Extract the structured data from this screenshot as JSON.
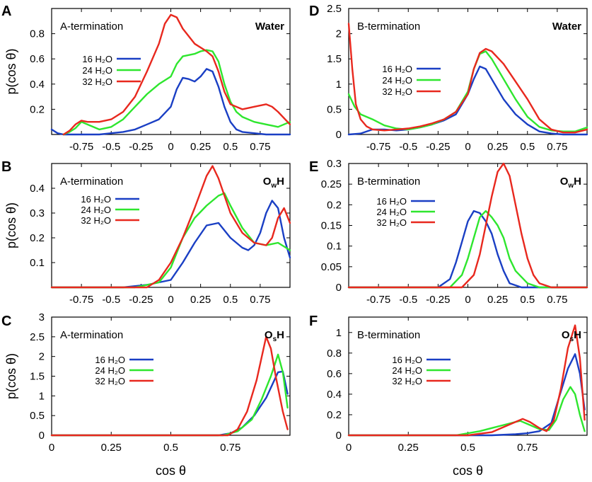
{
  "figure": {
    "panel_ylabel": "p(cos θ)",
    "bottom_xlabel": "cos θ",
    "colors": {
      "16 H2O": "#1a3fc4",
      "24 H2O": "#2ee62e",
      "32 H2O": "#e8281e"
    }
  },
  "chart_data": [
    {
      "id": "A",
      "type": "line",
      "letter": "A",
      "label": "A-termination",
      "title": "Water",
      "xlim": [
        -1,
        1
      ],
      "ylim": [
        0,
        1.0
      ],
      "xticks": [
        -0.75,
        -0.5,
        -0.25,
        0,
        0.25,
        0.5,
        0.75
      ],
      "xtick_labels": [
        "-0.75",
        "-0.5",
        "-0.25",
        "0",
        "0.25",
        "0.5",
        "0.75"
      ],
      "yticks": [
        0.2,
        0.4,
        0.6,
        0.8
      ],
      "ytick_labels": [
        "0.2",
        "0.4",
        "0.6",
        "0.8"
      ],
      "ylabel": "p(cos θ)",
      "xlabel": "",
      "legend": [
        "16 H₂O",
        "24 H₂O",
        "32 H₂O"
      ],
      "series": [
        {
          "name": "16 H₂O",
          "color": "#1a3fc4",
          "x": [
            -1,
            -0.95,
            -0.9,
            -0.8,
            -0.7,
            -0.6,
            -0.5,
            -0.4,
            -0.3,
            -0.2,
            -0.1,
            0,
            0.05,
            0.1,
            0.15,
            0.2,
            0.25,
            0.3,
            0.35,
            0.4,
            0.45,
            0.5,
            0.55,
            0.6,
            0.7,
            0.8,
            0.9,
            1
          ],
          "y": [
            0.04,
            0.01,
            0.0,
            0.0,
            0.0,
            0.0,
            0.01,
            0.02,
            0.04,
            0.08,
            0.12,
            0.22,
            0.36,
            0.45,
            0.44,
            0.42,
            0.46,
            0.52,
            0.5,
            0.38,
            0.22,
            0.1,
            0.04,
            0.02,
            0.01,
            0.0,
            0.0,
            0.0
          ]
        },
        {
          "name": "24 H₂O",
          "color": "#2ee62e",
          "x": [
            -0.9,
            -0.85,
            -0.8,
            -0.75,
            -0.7,
            -0.6,
            -0.5,
            -0.4,
            -0.3,
            -0.2,
            -0.1,
            0,
            0.05,
            0.1,
            0.2,
            0.25,
            0.3,
            0.35,
            0.4,
            0.45,
            0.5,
            0.55,
            0.6,
            0.7,
            0.8,
            0.9,
            1
          ],
          "y": [
            0.0,
            0.02,
            0.05,
            0.1,
            0.08,
            0.04,
            0.06,
            0.12,
            0.22,
            0.32,
            0.4,
            0.46,
            0.56,
            0.62,
            0.64,
            0.66,
            0.67,
            0.66,
            0.58,
            0.4,
            0.26,
            0.18,
            0.14,
            0.1,
            0.08,
            0.06,
            0.1
          ]
        },
        {
          "name": "32 H₂O",
          "color": "#e8281e",
          "x": [
            -0.9,
            -0.85,
            -0.8,
            -0.75,
            -0.7,
            -0.6,
            -0.5,
            -0.4,
            -0.3,
            -0.2,
            -0.1,
            -0.05,
            0,
            0.05,
            0.1,
            0.2,
            0.3,
            0.35,
            0.4,
            0.45,
            0.5,
            0.6,
            0.7,
            0.8,
            0.85,
            0.9,
            1
          ],
          "y": [
            0.0,
            0.03,
            0.08,
            0.11,
            0.1,
            0.1,
            0.12,
            0.18,
            0.3,
            0.5,
            0.72,
            0.88,
            0.95,
            0.93,
            0.84,
            0.72,
            0.66,
            0.62,
            0.5,
            0.34,
            0.24,
            0.2,
            0.22,
            0.24,
            0.22,
            0.18,
            0.08
          ]
        }
      ]
    },
    {
      "id": "B",
      "type": "line",
      "letter": "B",
      "label": "A-termination",
      "title": "O",
      "title_sub": "w",
      "title_suffix": "H",
      "xlim": [
        -1,
        1
      ],
      "ylim": [
        0,
        0.5
      ],
      "xticks": [
        -0.75,
        -0.5,
        -0.25,
        0,
        0.25,
        0.5,
        0.75
      ],
      "xtick_labels": [
        "-0.75",
        "-0.5",
        "-0.25",
        "0",
        "0.25",
        "0.5",
        "0.75"
      ],
      "yticks": [
        0.1,
        0.2,
        0.3,
        0.4
      ],
      "ytick_labels": [
        "0.1",
        "0.2",
        "0.3",
        "0.4"
      ],
      "ylabel": "p(cos θ)",
      "xlabel": "",
      "legend": [
        "16 H₂O",
        "24 H₂O",
        "32 H₂O"
      ],
      "series": [
        {
          "name": "16 H₂O",
          "color": "#1a3fc4",
          "x": [
            -1,
            -0.4,
            -0.2,
            0,
            0.1,
            0.2,
            0.3,
            0.4,
            0.5,
            0.6,
            0.65,
            0.7,
            0.75,
            0.8,
            0.85,
            0.9,
            0.95,
            1
          ],
          "y": [
            0.0,
            0.0,
            0.01,
            0.03,
            0.1,
            0.18,
            0.25,
            0.26,
            0.2,
            0.16,
            0.15,
            0.17,
            0.22,
            0.3,
            0.35,
            0.32,
            0.2,
            0.12
          ]
        },
        {
          "name": "24 H₂O",
          "color": "#2ee62e",
          "x": [
            -1,
            -0.3,
            -0.1,
            0,
            0.1,
            0.2,
            0.3,
            0.4,
            0.45,
            0.5,
            0.6,
            0.7,
            0.8,
            0.9,
            1
          ],
          "y": [
            0.0,
            0.0,
            0.02,
            0.08,
            0.2,
            0.28,
            0.33,
            0.37,
            0.38,
            0.33,
            0.24,
            0.18,
            0.17,
            0.18,
            0.15
          ]
        },
        {
          "name": "32 H₂O",
          "color": "#e8281e",
          "x": [
            -1,
            -0.2,
            -0.1,
            0,
            0.1,
            0.2,
            0.3,
            0.35,
            0.4,
            0.5,
            0.6,
            0.7,
            0.8,
            0.85,
            0.9,
            0.95,
            1
          ],
          "y": [
            0.0,
            0.0,
            0.03,
            0.1,
            0.2,
            0.32,
            0.45,
            0.49,
            0.44,
            0.3,
            0.22,
            0.18,
            0.17,
            0.2,
            0.28,
            0.32,
            0.26
          ]
        }
      ]
    },
    {
      "id": "C",
      "type": "line",
      "letter": "C",
      "label": "A-termination",
      "title": "O",
      "title_sub": "s",
      "title_suffix": "H",
      "xlim": [
        0,
        1
      ],
      "ylim": [
        0,
        3
      ],
      "xticks": [
        0,
        0.25,
        0.5,
        0.75
      ],
      "xtick_labels": [
        "0",
        "0.25",
        "0.5",
        "0.75"
      ],
      "yticks": [
        0,
        0.5,
        1,
        1.5,
        2,
        2.5,
        3
      ],
      "ytick_labels": [
        "0",
        "0.5",
        "1",
        "1.5",
        "2",
        "2.5",
        "3"
      ],
      "ylabel": "p(cos θ)",
      "xlabel": "cos θ",
      "legend": [
        "16 H₂O",
        "24 H₂O",
        "32 H₂O"
      ],
      "series": [
        {
          "name": "16 H₂O",
          "color": "#1a3fc4",
          "x": [
            0,
            0.7,
            0.75,
            0.8,
            0.85,
            0.9,
            0.95,
            0.97,
            0.99
          ],
          "y": [
            0,
            0.0,
            0.05,
            0.2,
            0.5,
            0.95,
            1.6,
            1.62,
            1.05
          ]
        },
        {
          "name": "24 H₂O",
          "color": "#2ee62e",
          "x": [
            0,
            0.72,
            0.78,
            0.84,
            0.88,
            0.92,
            0.95,
            0.97,
            0.99
          ],
          "y": [
            0,
            0.0,
            0.1,
            0.4,
            0.9,
            1.5,
            2.05,
            1.6,
            0.7
          ]
        },
        {
          "name": "32 H₂O",
          "color": "#e8281e",
          "x": [
            0,
            0.74,
            0.78,
            0.82,
            0.86,
            0.9,
            0.92,
            0.94,
            0.97,
            0.99
          ],
          "y": [
            0,
            0.0,
            0.15,
            0.6,
            1.4,
            2.5,
            2.2,
            1.5,
            0.6,
            0.15
          ]
        }
      ]
    },
    {
      "id": "D",
      "type": "line",
      "letter": "D",
      "label": "B-termination",
      "title": "Water",
      "xlim": [
        -1,
        1
      ],
      "ylim": [
        0,
        2.5
      ],
      "xticks": [
        -0.75,
        -0.5,
        -0.25,
        0,
        0.25,
        0.5,
        0.75
      ],
      "xtick_labels": [
        "-0.75",
        "-0.5",
        "-0.25",
        "0",
        "0.25",
        "0.5",
        "0.75"
      ],
      "yticks": [
        0,
        0.5,
        1,
        1.5,
        2,
        2.5
      ],
      "ytick_labels": [
        "0",
        "0.5",
        "1",
        "1.5",
        "2",
        "2.5"
      ],
      "ylabel": "",
      "xlabel": "",
      "legend": [
        "16 H₂O",
        "24 H₂O",
        "32 H₂O"
      ],
      "series": [
        {
          "name": "16 H₂O",
          "color": "#1a3fc4",
          "x": [
            -1,
            -0.9,
            -0.8,
            -0.7,
            -0.6,
            -0.5,
            -0.4,
            -0.3,
            -0.2,
            -0.1,
            0,
            0.05,
            0.1,
            0.15,
            0.2,
            0.3,
            0.4,
            0.5,
            0.6,
            0.7,
            0.8,
            1
          ],
          "y": [
            0.0,
            0.02,
            0.1,
            0.1,
            0.08,
            0.1,
            0.14,
            0.2,
            0.28,
            0.4,
            0.8,
            1.1,
            1.35,
            1.3,
            1.1,
            0.7,
            0.4,
            0.2,
            0.06,
            0.02,
            0.0,
            0.0
          ]
        },
        {
          "name": "24 H₂O",
          "color": "#2ee62e",
          "x": [
            -1,
            -0.95,
            -0.9,
            -0.8,
            -0.7,
            -0.6,
            -0.5,
            -0.4,
            -0.3,
            -0.2,
            -0.1,
            0,
            0.05,
            0.1,
            0.15,
            0.2,
            0.3,
            0.4,
            0.5,
            0.6,
            0.7,
            0.8,
            0.9,
            1
          ],
          "y": [
            0.8,
            0.55,
            0.4,
            0.3,
            0.18,
            0.12,
            0.1,
            0.14,
            0.2,
            0.3,
            0.45,
            0.85,
            1.3,
            1.6,
            1.65,
            1.5,
            1.1,
            0.7,
            0.35,
            0.15,
            0.08,
            0.06,
            0.06,
            0.14
          ]
        },
        {
          "name": "32 H₂O",
          "color": "#e8281e",
          "x": [
            -1,
            -0.97,
            -0.94,
            -0.9,
            -0.85,
            -0.8,
            -0.7,
            -0.6,
            -0.5,
            -0.4,
            -0.3,
            -0.2,
            -0.1,
            0,
            0.05,
            0.1,
            0.15,
            0.2,
            0.3,
            0.4,
            0.5,
            0.6,
            0.7,
            0.8,
            0.9,
            1
          ],
          "y": [
            2.2,
            1.3,
            0.6,
            0.3,
            0.16,
            0.1,
            0.08,
            0.1,
            0.12,
            0.16,
            0.22,
            0.3,
            0.45,
            0.8,
            1.3,
            1.62,
            1.7,
            1.65,
            1.4,
            1.05,
            0.7,
            0.3,
            0.1,
            0.04,
            0.04,
            0.1
          ]
        }
      ]
    },
    {
      "id": "E",
      "type": "line",
      "letter": "E",
      "label": "B-termination",
      "title": "O",
      "title_sub": "w",
      "title_suffix": "H",
      "xlim": [
        -1,
        1
      ],
      "ylim": [
        0,
        0.3
      ],
      "xticks": [
        -0.75,
        -0.5,
        -0.25,
        0,
        0.25,
        0.5,
        0.75
      ],
      "xtick_labels": [
        "-0.75",
        "-0.5",
        "-0.25",
        "0",
        "0.25",
        "0.5",
        "0.75"
      ],
      "yticks": [
        0,
        0.05,
        0.1,
        0.15,
        0.2,
        0.25,
        0.3
      ],
      "ytick_labels": [
        "0",
        "0.05",
        "0.1",
        "0.15",
        "0.2",
        "0.25",
        "0.3"
      ],
      "ylabel": "",
      "xlabel": "",
      "legend": [
        "16 H₂O",
        "24 H₂O",
        "32 H₂O"
      ],
      "series": [
        {
          "name": "16 H₂O",
          "color": "#1a3fc4",
          "x": [
            -1,
            -0.25,
            -0.15,
            -0.1,
            -0.05,
            0,
            0.05,
            0.1,
            0.15,
            0.2,
            0.25,
            0.3,
            0.35,
            0.45,
            1
          ],
          "y": [
            0.0,
            0.0,
            0.02,
            0.06,
            0.11,
            0.16,
            0.185,
            0.18,
            0.16,
            0.13,
            0.08,
            0.04,
            0.01,
            0.0,
            0.0
          ]
        },
        {
          "name": "24 H₂O",
          "color": "#2ee62e",
          "x": [
            -1,
            -0.15,
            -0.05,
            0,
            0.05,
            0.1,
            0.15,
            0.2,
            0.25,
            0.3,
            0.35,
            0.4,
            0.5,
            0.6,
            1
          ],
          "y": [
            0.0,
            0.0,
            0.03,
            0.07,
            0.12,
            0.17,
            0.185,
            0.17,
            0.15,
            0.12,
            0.07,
            0.04,
            0.01,
            0.0,
            0.0
          ]
        },
        {
          "name": "32 H₂O",
          "color": "#e8281e",
          "x": [
            -1,
            -0.05,
            0.05,
            0.1,
            0.15,
            0.2,
            0.25,
            0.3,
            0.35,
            0.4,
            0.45,
            0.5,
            0.55,
            0.6,
            0.7,
            1
          ],
          "y": [
            0.0,
            0.0,
            0.03,
            0.08,
            0.15,
            0.22,
            0.28,
            0.3,
            0.27,
            0.2,
            0.13,
            0.07,
            0.03,
            0.01,
            0.0,
            0.0
          ]
        }
      ]
    },
    {
      "id": "F",
      "type": "line",
      "letter": "F",
      "label": "B-termination",
      "title": "O",
      "title_sub": "s",
      "title_suffix": "H",
      "xlim": [
        0,
        1
      ],
      "ylim": [
        0,
        1.15
      ],
      "xticks": [
        0,
        0.25,
        0.5,
        0.75
      ],
      "xtick_labels": [
        "0",
        "0.25",
        "0.5",
        "0.75"
      ],
      "yticks": [
        0,
        0.2,
        0.4,
        0.6,
        0.8,
        1
      ],
      "ytick_labels": [
        "0",
        "0.2",
        "0.4",
        "0.6",
        "0.8",
        "1"
      ],
      "ylabel": "",
      "xlabel": "cos θ",
      "legend": [
        "16 H₂O",
        "24 H₂O",
        "32 H₂O"
      ],
      "series": [
        {
          "name": "16 H₂O",
          "color": "#1a3fc4",
          "x": [
            0,
            0.6,
            0.7,
            0.75,
            0.8,
            0.85,
            0.88,
            0.92,
            0.95,
            0.97,
            0.99
          ],
          "y": [
            0,
            0.0,
            0.01,
            0.02,
            0.04,
            0.12,
            0.35,
            0.65,
            0.79,
            0.6,
            0.25
          ]
        },
        {
          "name": "24 H₂O",
          "color": "#2ee62e",
          "x": [
            0,
            0.45,
            0.55,
            0.6,
            0.65,
            0.7,
            0.72,
            0.75,
            0.8,
            0.84,
            0.87,
            0.9,
            0.93,
            0.95,
            0.97,
            0.99
          ],
          "y": [
            0,
            0.0,
            0.04,
            0.07,
            0.1,
            0.13,
            0.14,
            0.11,
            0.06,
            0.05,
            0.15,
            0.35,
            0.47,
            0.4,
            0.2,
            0.04
          ]
        },
        {
          "name": "32 H₂O",
          "color": "#e8281e",
          "x": [
            0,
            0.5,
            0.6,
            0.65,
            0.7,
            0.73,
            0.76,
            0.8,
            0.83,
            0.86,
            0.89,
            0.92,
            0.95,
            0.97,
            0.99
          ],
          "y": [
            0,
            0.0,
            0.03,
            0.08,
            0.13,
            0.16,
            0.13,
            0.07,
            0.04,
            0.14,
            0.45,
            0.85,
            1.07,
            0.75,
            0.15
          ]
        }
      ]
    }
  ]
}
